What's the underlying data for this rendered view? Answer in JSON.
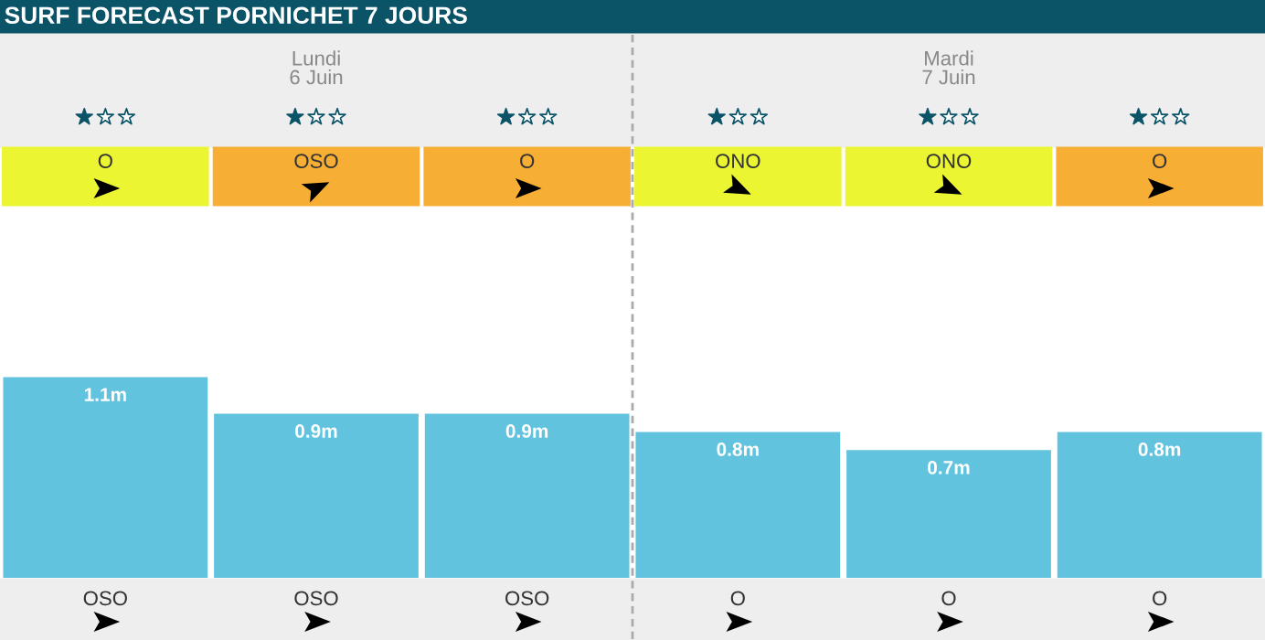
{
  "chart_data": {
    "type": "bar",
    "title": "SURF FORECAST PORNICHET 7 JOURS",
    "categories": [
      "OSO",
      "OSO",
      "OSO",
      "O",
      "O",
      "O"
    ],
    "values": [
      1.1,
      0.9,
      0.9,
      0.8,
      0.7,
      0.8
    ],
    "value_labels": [
      "1.1m",
      "0.9m",
      "0.9m",
      "0.8m",
      "0.7m",
      "0.8m"
    ],
    "color": "#62c3df",
    "annotations": [
      "Lundi\n6 Juin",
      "Mardi\n7 Juin",
      "O",
      "OSO",
      "O",
      "ONO",
      "ONO",
      "O"
    ]
  }
}
